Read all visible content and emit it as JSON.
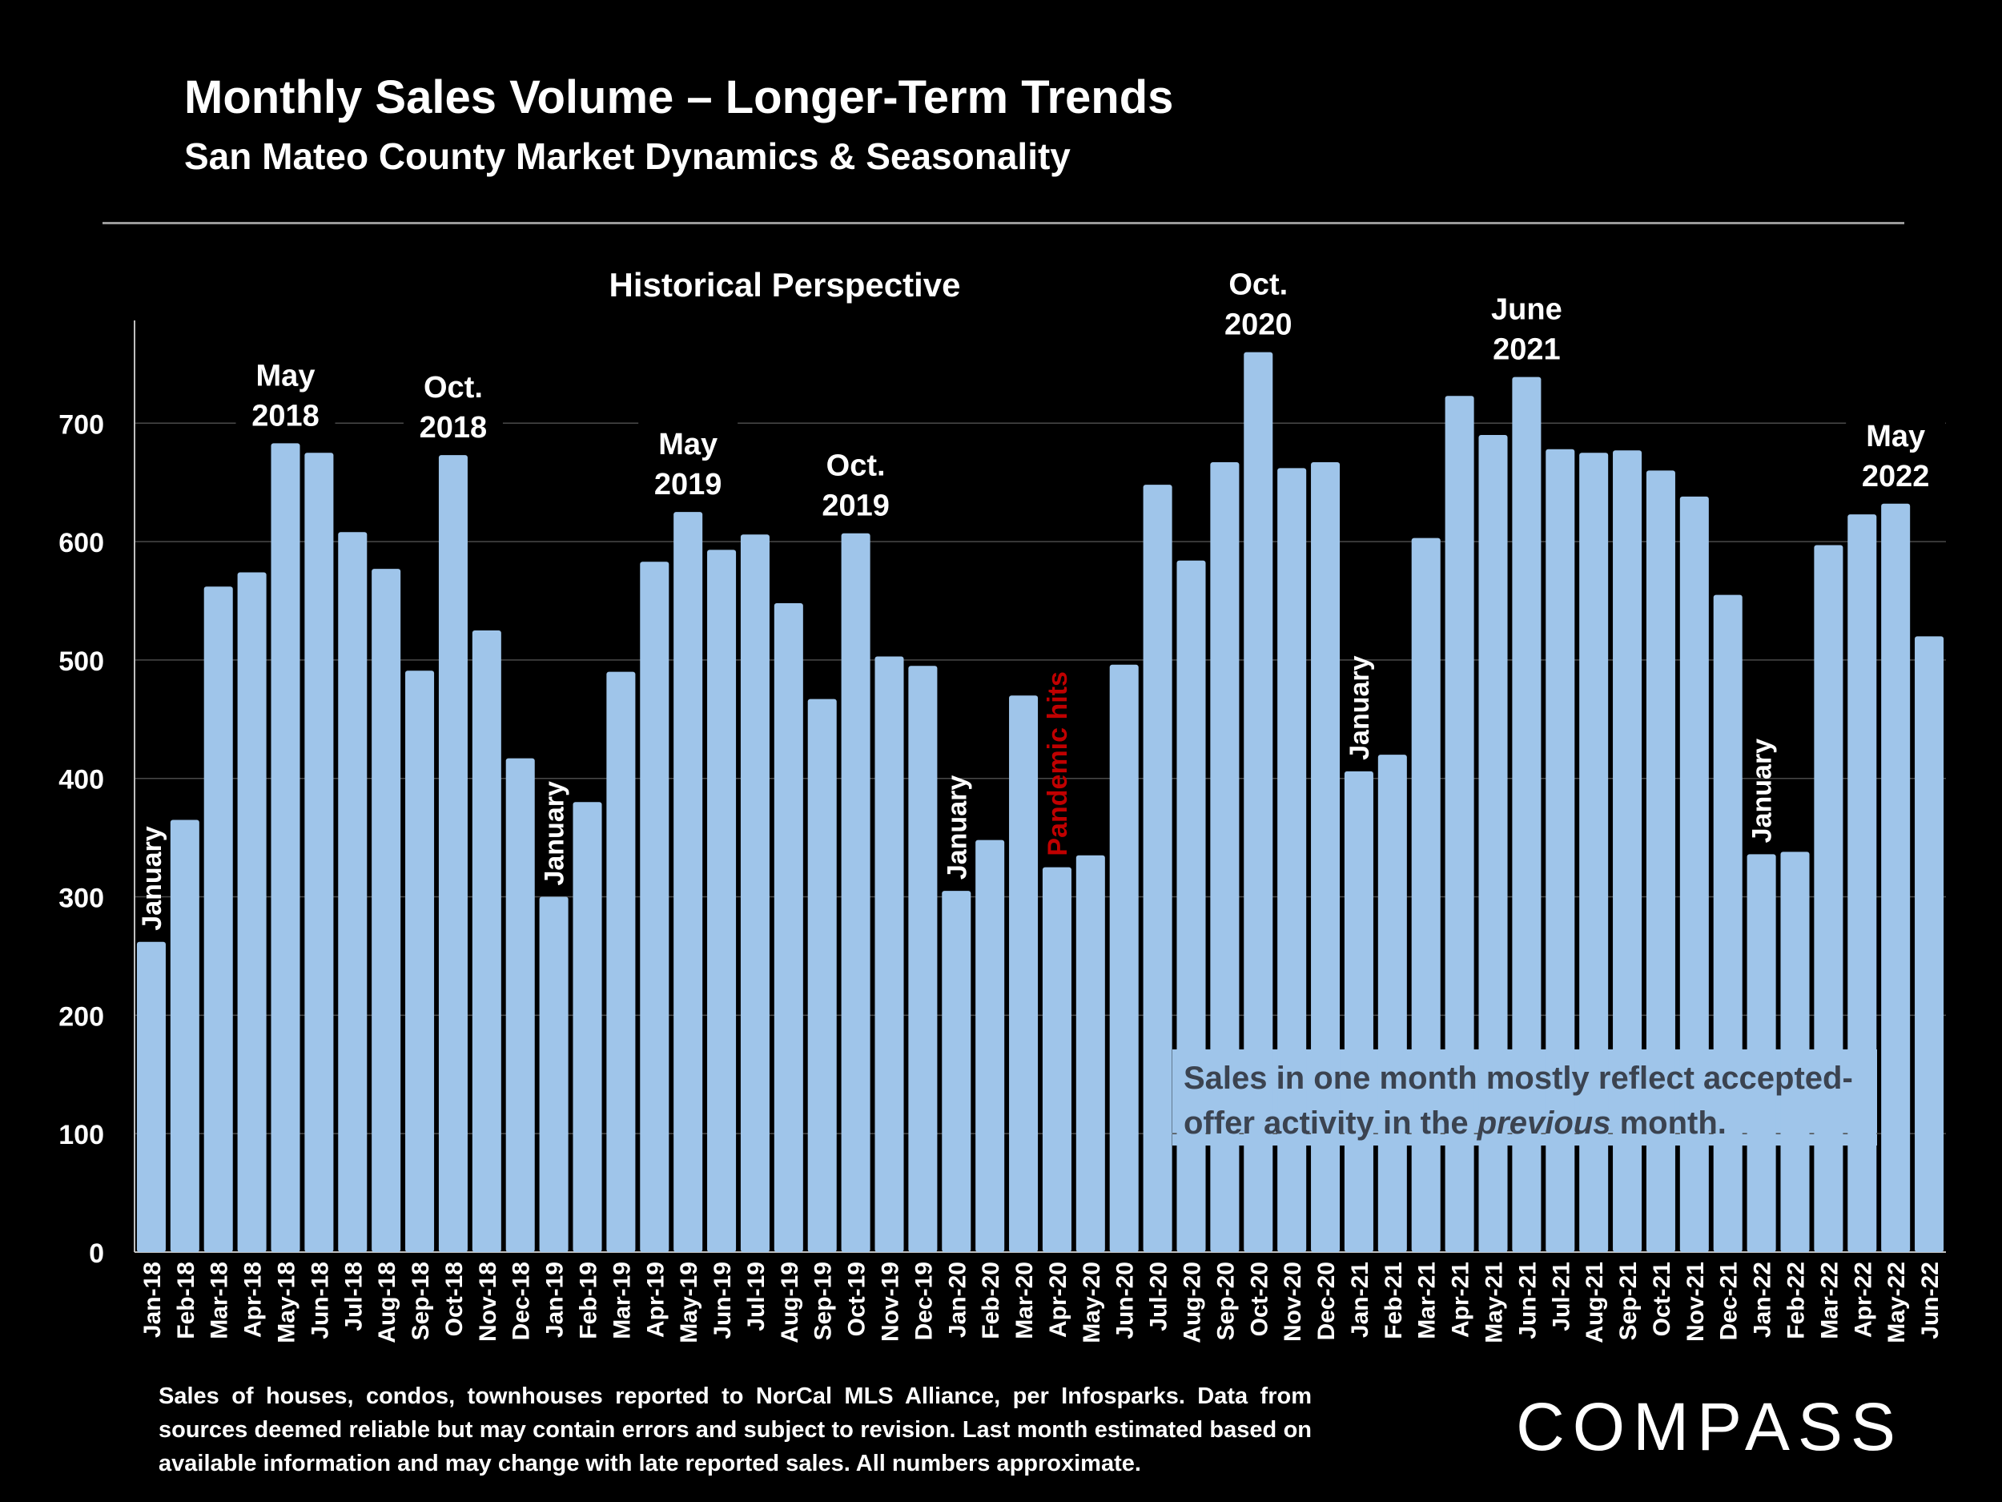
{
  "header": {
    "title": "Monthly Sales Volume – Longer-Term Trends",
    "subtitle": "San Mateo County Market Dynamics & Seasonality"
  },
  "chart_data": {
    "type": "bar",
    "title": "Historical Perspective",
    "xlabel": "",
    "ylabel": "",
    "ylim": [
      0,
      780
    ],
    "yticks": [
      0,
      100,
      200,
      300,
      400,
      500,
      600,
      700
    ],
    "grid": true,
    "bar_color": "#9fc5ea",
    "categories": [
      "Jan-18",
      "Feb-18",
      "Mar-18",
      "Apr-18",
      "May-18",
      "Jun-18",
      "Jul-18",
      "Aug-18",
      "Sep-18",
      "Oct-18",
      "Nov-18",
      "Dec-18",
      "Jan-19",
      "Feb-19",
      "Mar-19",
      "Apr-19",
      "May-19",
      "Jun-19",
      "Jul-19",
      "Aug-19",
      "Sep-19",
      "Oct-19",
      "Nov-19",
      "Dec-19",
      "Jan-20",
      "Feb-20",
      "Mar-20",
      "Apr-20",
      "May-20",
      "Jun-20",
      "Jul-20",
      "Aug-20",
      "Sep-20",
      "Oct-20",
      "Nov-20",
      "Dec-20",
      "Jan-21",
      "Feb-21",
      "Mar-21",
      "Apr-21",
      "May-21",
      "Jun-21",
      "Jul-21",
      "Aug-21",
      "Sep-21",
      "Oct-21",
      "Nov-21",
      "Dec-21",
      "Jan-22",
      "Feb-22",
      "Mar-22",
      "Apr-22",
      "May-22",
      "Jun-22"
    ],
    "values": [
      262,
      365,
      562,
      574,
      683,
      675,
      608,
      577,
      491,
      673,
      525,
      417,
      300,
      380,
      490,
      583,
      625,
      593,
      606,
      548,
      467,
      607,
      503,
      495,
      305,
      348,
      470,
      325,
      335,
      496,
      648,
      584,
      667,
      760,
      662,
      667,
      406,
      420,
      603,
      723,
      690,
      739,
      678,
      675,
      677,
      660,
      638,
      555,
      336,
      338,
      597,
      623,
      632,
      520
    ],
    "annotations": [
      {
        "index": 4,
        "lines": [
          "May",
          "2018"
        ]
      },
      {
        "index": 9,
        "lines": [
          "Oct.",
          "2018"
        ]
      },
      {
        "index": 16,
        "lines": [
          "May",
          "2019"
        ]
      },
      {
        "index": 21,
        "lines": [
          "Oct.",
          "2019"
        ]
      },
      {
        "index": 33,
        "lines": [
          "Oct.",
          "2020"
        ]
      },
      {
        "index": 41,
        "lines": [
          "June",
          "2021"
        ]
      },
      {
        "index": 52,
        "lines": [
          "May",
          "2022"
        ]
      }
    ],
    "vertical_labels": [
      {
        "index": 0,
        "text": "January",
        "color": "#ffffff"
      },
      {
        "index": 12,
        "text": "January",
        "color": "#ffffff"
      },
      {
        "index": 24,
        "text": "January",
        "color": "#ffffff"
      },
      {
        "index": 27,
        "text": "Pandemic hits",
        "color": "#c00000"
      },
      {
        "index": 36,
        "text": "January",
        "color": "#ffffff"
      },
      {
        "index": 48,
        "text": "January",
        "color": "#ffffff"
      }
    ]
  },
  "callout": {
    "line1": "Sales in one month mostly reflect accepted-",
    "line2_pre": "offer activity in the ",
    "line2_em": "previous",
    "line2_post": " month."
  },
  "footnote": "Sales of houses, condos, townhouses reported to NorCal MLS Alliance, per Infosparks. Data from sources deemed reliable but may contain errors and subject to revision. Last month estimated based on available information and may change with late reported sales. All numbers approximate.",
  "logo": {
    "text": "COMPASS",
    "icon": "compass-logo-icon"
  }
}
